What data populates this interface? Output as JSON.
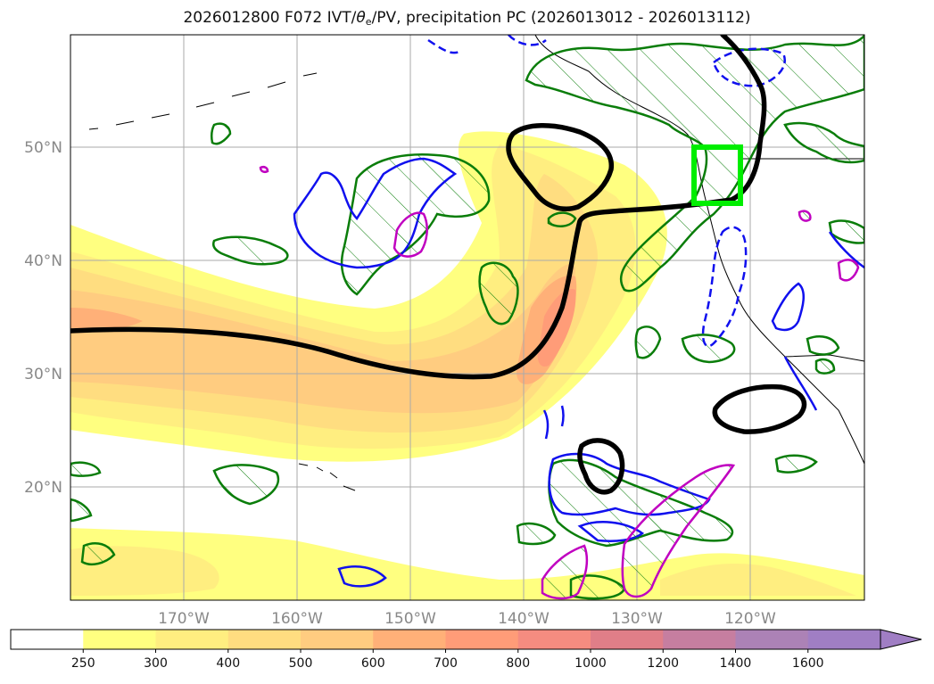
{
  "figure": {
    "title_pre": "2026012800 F072 IVT/",
    "title_theta": "θ",
    "title_sub": "e",
    "title_post": "/PV, precipitation PC (2026013012 - 2026013112)"
  },
  "axes": {
    "lat_labels": [
      "50°N",
      "40°N",
      "30°N",
      "20°N"
    ],
    "lon_labels": [
      "170°W",
      "160°W",
      "150°W",
      "140°W",
      "130°W",
      "120°W"
    ]
  },
  "colorbar": {
    "ticks": [
      "250",
      "300",
      "400",
      "500",
      "600",
      "700",
      "800",
      "1000",
      "1200",
      "1400",
      "1600"
    ],
    "colors": [
      "#ffffff",
      "#ffff80",
      "#ffee80",
      "#ffdd80",
      "#ffcc80",
      "#ffb078",
      "#ff9c78",
      "#f58c80",
      "#e07e88",
      "#c67ea0",
      "#ac82b6",
      "#a07ec4"
    ],
    "extend": "max"
  },
  "styles": {
    "jet_color": "#000000",
    "precip_color": "#0a7d0a",
    "pv_color": "#1010ee",
    "pv_high_color": "#c000c0",
    "box_color": "#00ee00",
    "coast_color": "#000000",
    "grid_color": "#aaaaaa"
  }
}
